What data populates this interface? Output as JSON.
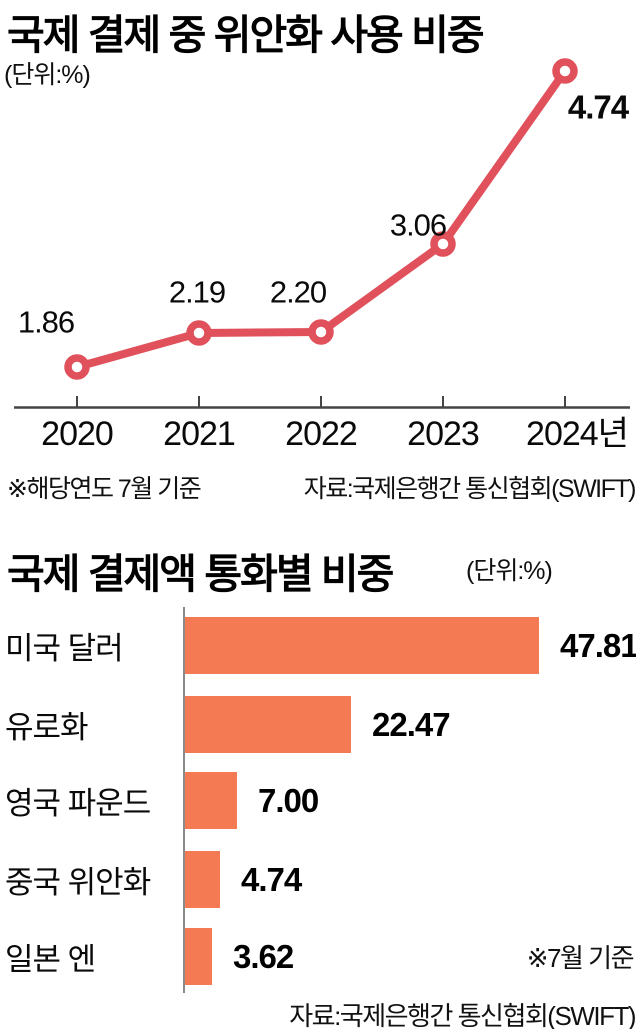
{
  "page": {
    "background": "#ffffff"
  },
  "chart_data": [
    {
      "type": "line",
      "title": "국제 결제 중 위안화 사용 비중",
      "unit_label": "(단위:%)",
      "categories": [
        "2020",
        "2021",
        "2022",
        "2023",
        "2024년"
      ],
      "values": [
        1.86,
        2.19,
        2.2,
        3.06,
        4.74
      ],
      "value_labels": [
        "1.86",
        "2.19",
        "2.20",
        "3.06",
        "4.74"
      ],
      "footnote": "※해당연도 7월 기준",
      "source": "자료:국제은행간 통신협회(SWIFT)",
      "line_color": "#e0515c",
      "marker_fill": "#ffffff",
      "axis_color": "#444444",
      "ylim": [
        1.5,
        5.0
      ],
      "grid": false,
      "legend": "none"
    },
    {
      "type": "bar",
      "orientation": "horizontal",
      "title": "국제 결제액 통화별 비중",
      "unit_label": "(단위:%)",
      "categories": [
        "미국 달러",
        "유로화",
        "영국 파운드",
        "중국 위안화",
        "일본 엔"
      ],
      "values": [
        47.81,
        22.47,
        7.0,
        4.74,
        3.62
      ],
      "value_labels": [
        "47.81",
        "22.47",
        "7.00",
        "4.74",
        "3.62"
      ],
      "note": "※7월 기준",
      "source": "자료:국제은행간 통신협회(SWIFT)",
      "bar_color": "#f47a54",
      "axis_color": "#8a8a8a",
      "xlim": [
        0,
        50
      ],
      "grid": false,
      "legend": "none"
    }
  ]
}
